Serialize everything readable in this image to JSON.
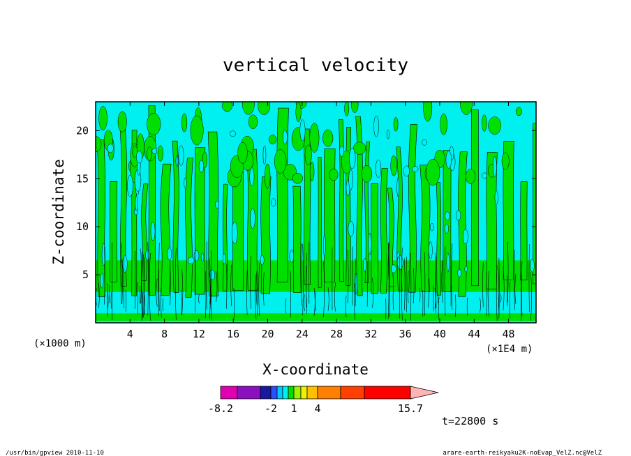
{
  "chart_data": {
    "type": "heatmap",
    "title": "vertical velocity",
    "xlabel": "X-coordinate",
    "ylabel": "Z-coordinate",
    "x_units": "(×1E4 m)",
    "y_units": "(×1000 m)",
    "xlim": [
      0,
      51.2
    ],
    "ylim": [
      0,
      23
    ],
    "x_ticks": [
      "4",
      "8",
      "12",
      "16",
      "20",
      "24",
      "28",
      "32",
      "36",
      "40",
      "44",
      "48"
    ],
    "x_tick_values": [
      4,
      8,
      12,
      16,
      20,
      24,
      28,
      32,
      36,
      40,
      44,
      48
    ],
    "y_ticks": [
      "5",
      "10",
      "15",
      "20"
    ],
    "y_tick_values": [
      5,
      10,
      15,
      20
    ],
    "time_label": "t=22800 s",
    "colorbar": {
      "labels": [
        "-8.2",
        "-2",
        "1",
        "4",
        "15.7"
      ],
      "label_values": [
        -8.2,
        -2,
        1,
        4,
        15.7
      ],
      "levels": [
        -8.2,
        -6,
        -4,
        -3,
        -2,
        -1,
        0,
        1,
        2,
        3,
        4,
        6,
        9,
        12,
        15.7
      ],
      "colors": [
        "#e000b0",
        "#8a10c0",
        "#1818a0",
        "#2850ff",
        "#00c8ff",
        "#00f0f0",
        "#00e000",
        "#a0f000",
        "#f0f000",
        "#ffc000",
        "#ff8000",
        "#ff4000",
        "#ff0000",
        "#ff8080"
      ],
      "extend_color": "#ffb4b4"
    },
    "dominant_fields": {
      "background_negative": "#00f0f0",
      "updraft_positive": "#00e000"
    }
  },
  "footer": {
    "left": "/usr/bin/gpview   2010-11-10",
    "right": "arare-earth-reikyaku2K-noEvap_VelZ.nc@VelZ"
  }
}
